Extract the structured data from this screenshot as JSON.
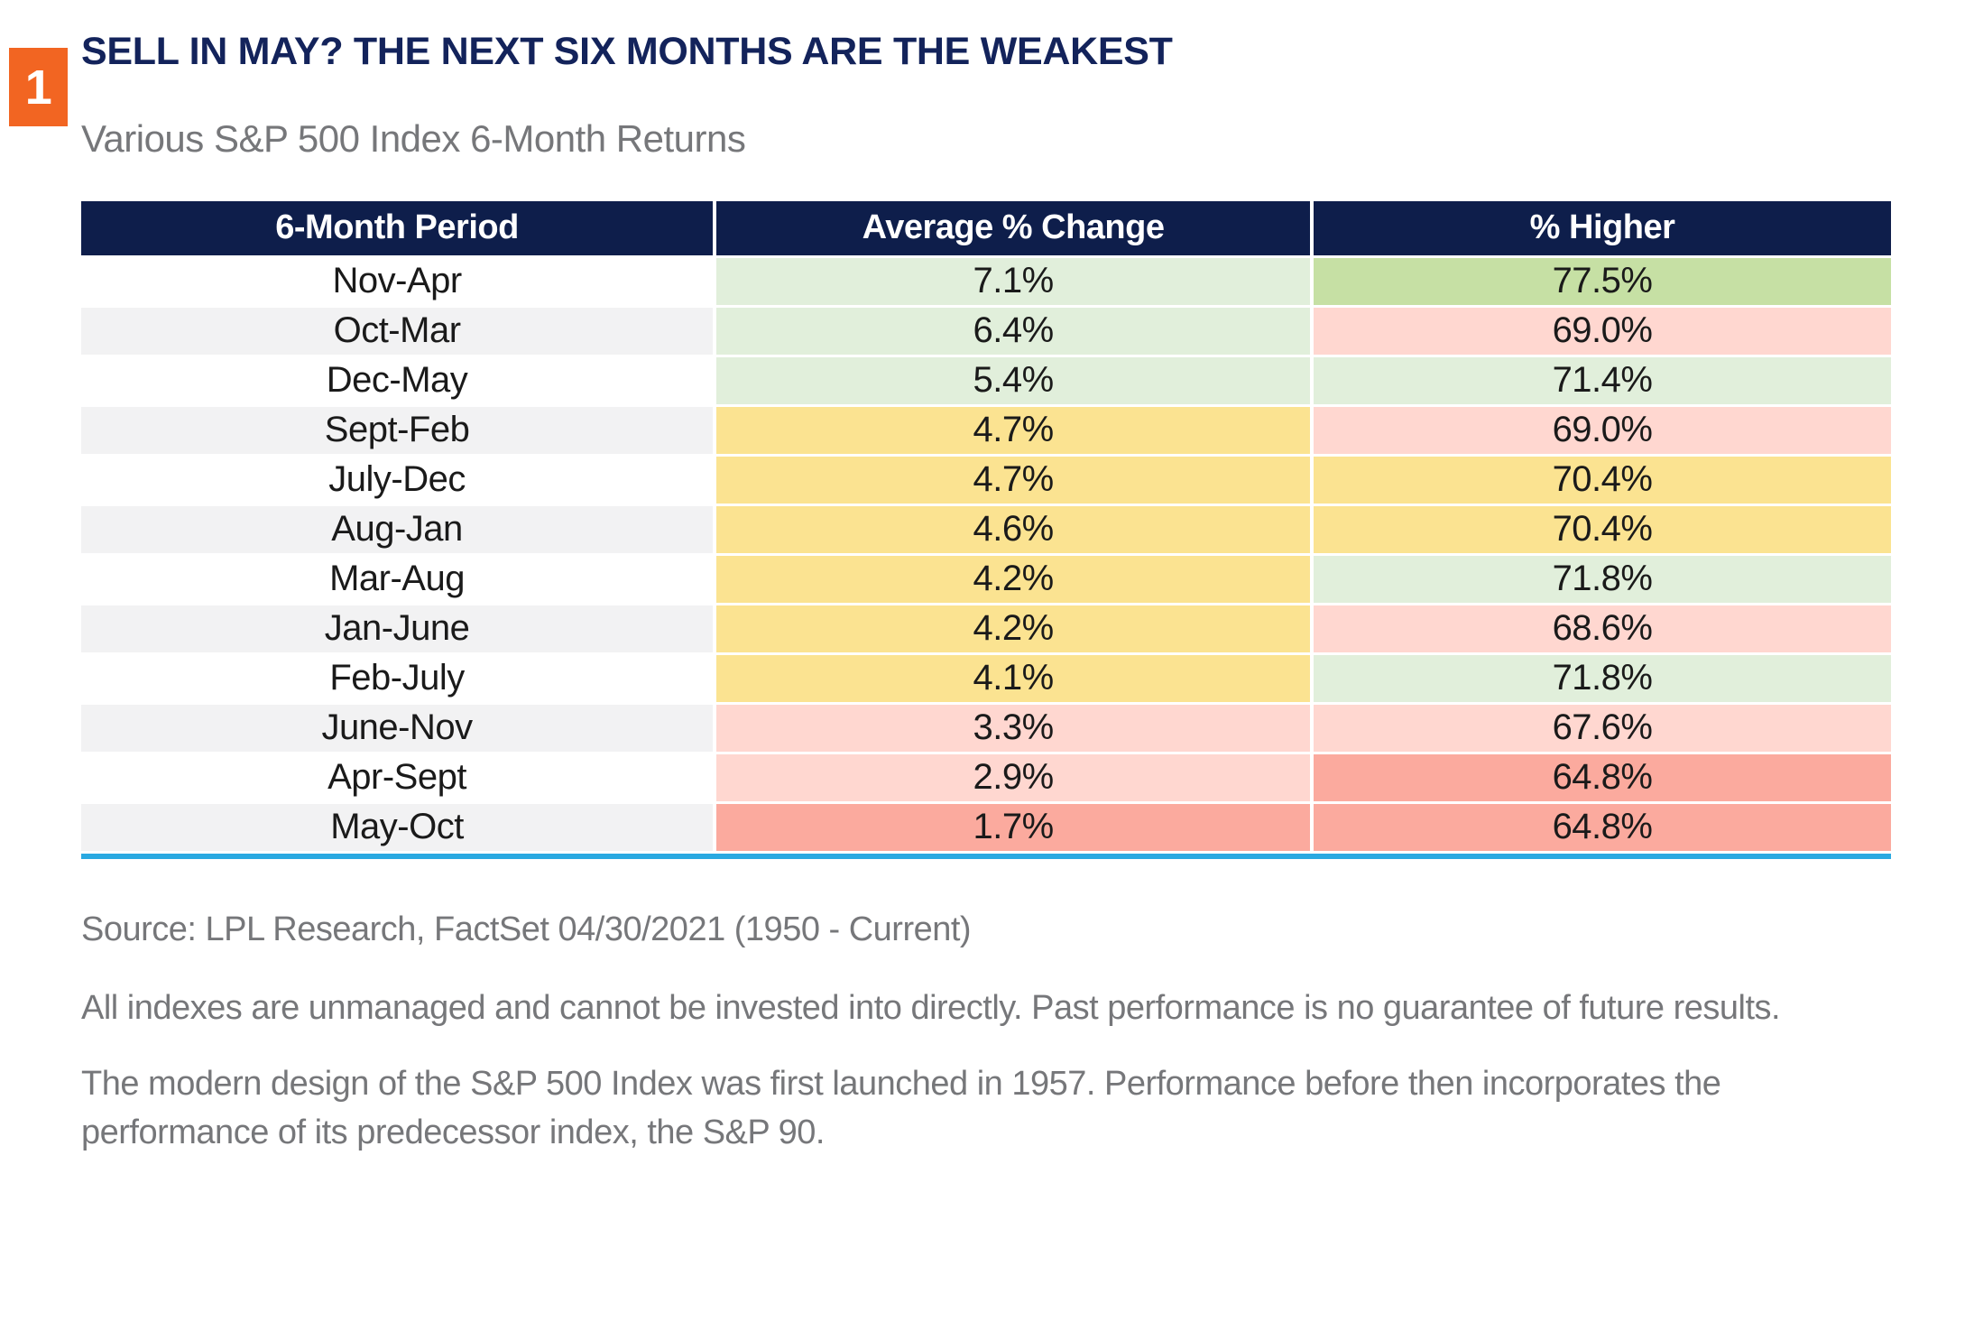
{
  "badge": {
    "label": "1"
  },
  "header": {
    "title": "SELL IN MAY? THE NEXT SIX MONTHS ARE THE WEAKEST",
    "subtitle": "Various S&P 500 Index 6-Month Returns"
  },
  "chart_data": {
    "type": "table",
    "title": "SELL IN MAY? THE NEXT SIX MONTHS ARE THE WEAKEST",
    "subtitle": "Various S&P 500 Index 6-Month Returns",
    "columns": [
      "6-Month Period",
      "Average % Change",
      "% Higher"
    ],
    "rows": [
      {
        "period": "Nov-Apr",
        "average_pct_change": 7.1,
        "pct_higher": 77.5,
        "average_display": "7.1%",
        "higher_display": "77.5%",
        "average_tone": "green-light",
        "higher_tone": "green-strong"
      },
      {
        "period": "Oct-Mar",
        "average_pct_change": 6.4,
        "pct_higher": 69.0,
        "average_display": "6.4%",
        "higher_display": "69.0%",
        "average_tone": "green-light",
        "higher_tone": "pink"
      },
      {
        "period": "Dec-May",
        "average_pct_change": 5.4,
        "pct_higher": 71.4,
        "average_display": "5.4%",
        "higher_display": "71.4%",
        "average_tone": "green-light",
        "higher_tone": "green-light"
      },
      {
        "period": "Sept-Feb",
        "average_pct_change": 4.7,
        "pct_higher": 69.0,
        "average_display": "4.7%",
        "higher_display": "69.0%",
        "average_tone": "yellow",
        "higher_tone": "pink"
      },
      {
        "period": "July-Dec",
        "average_pct_change": 4.7,
        "pct_higher": 70.4,
        "average_display": "4.7%",
        "higher_display": "70.4%",
        "average_tone": "yellow",
        "higher_tone": "yellow"
      },
      {
        "period": "Aug-Jan",
        "average_pct_change": 4.6,
        "pct_higher": 70.4,
        "average_display": "4.6%",
        "higher_display": "70.4%",
        "average_tone": "yellow",
        "higher_tone": "yellow"
      },
      {
        "period": "Mar-Aug",
        "average_pct_change": 4.2,
        "pct_higher": 71.8,
        "average_display": "4.2%",
        "higher_display": "71.8%",
        "average_tone": "yellow",
        "higher_tone": "green-light"
      },
      {
        "period": "Jan-June",
        "average_pct_change": 4.2,
        "pct_higher": 68.6,
        "average_display": "4.2%",
        "higher_display": "68.6%",
        "average_tone": "yellow",
        "higher_tone": "pink"
      },
      {
        "period": "Feb-July",
        "average_pct_change": 4.1,
        "pct_higher": 71.8,
        "average_display": "4.1%",
        "higher_display": "71.8%",
        "average_tone": "yellow",
        "higher_tone": "green-light"
      },
      {
        "period": "June-Nov",
        "average_pct_change": 3.3,
        "pct_higher": 67.6,
        "average_display": "3.3%",
        "higher_display": "67.6%",
        "average_tone": "pink",
        "higher_tone": "pink"
      },
      {
        "period": "Apr-Sept",
        "average_pct_change": 2.9,
        "pct_higher": 64.8,
        "average_display": "2.9%",
        "higher_display": "64.8%",
        "average_tone": "pink",
        "higher_tone": "salmon"
      },
      {
        "period": "May-Oct",
        "average_pct_change": 1.7,
        "pct_higher": 64.8,
        "average_display": "1.7%",
        "higher_display": "64.8%",
        "average_tone": "salmon",
        "higher_tone": "salmon"
      }
    ],
    "legend_position": "none",
    "grid": false
  },
  "footnotes": {
    "source": "Source: LPL Research, FactSet 04/30/2021 (1950 - Current)",
    "disclaimer": "All indexes are unmanaged and cannot be invested into directly. Past performance is no guarantee of future results.",
    "note": "The modern design of the S&P 500 Index was first launched in 1957. Performance before then incorporates the performance of its predecessor index, the S&P 90."
  },
  "colors": {
    "accent_orange": "#F26522",
    "header_navy": "#0E1E4B",
    "title_navy": "#13235B",
    "text_gray": "#76777A",
    "cell_text": "#1A1A1A",
    "row_alt_gray": "#F2F2F3",
    "bottom_rule_blue": "#2AA9E1",
    "tones": {
      "green-strong": "#C6E0A4",
      "green-light": "#E1EFDB",
      "yellow": "#FBE391",
      "pink": "#FFD7D0",
      "salmon": "#FBAA9E"
    }
  }
}
